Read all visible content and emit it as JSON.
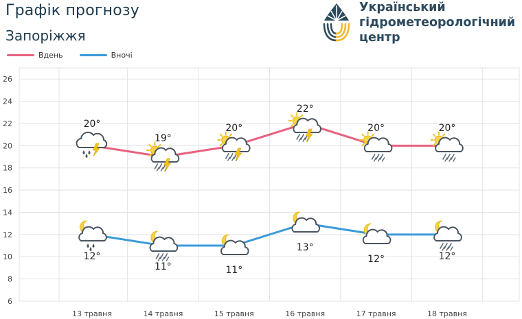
{
  "header": {
    "title": "Графік прогнозу",
    "city": "Запоріжжя",
    "org_line1": "Український",
    "org_line2": "гідрометеорологічний",
    "org_line3": "центр"
  },
  "colors": {
    "day": "#e8627f",
    "night": "#3b9ad9",
    "grid": "#e3e3e3"
  },
  "chart_data": {
    "type": "line",
    "categories": [
      "13 травня",
      "14 травня",
      "15 травня",
      "16 травня",
      "17 травня",
      "18 травня"
    ],
    "series": [
      {
        "name": "Вдень",
        "values": [
          20,
          19,
          20,
          22,
          20,
          20
        ],
        "labels": [
          "20°",
          "19°",
          "20°",
          "22°",
          "20°",
          "20°"
        ],
        "icons": [
          "rain-thunder-cloud-icon",
          "sun-thunder-cloud-icon",
          "sun-thunder-cloud-icon",
          "sun-thunder-cloud-icon",
          "sun-drizzle-cloud-icon",
          "sun-drizzle-cloud-icon"
        ]
      },
      {
        "name": "Вночі",
        "values": [
          12,
          11,
          11,
          13,
          12,
          12
        ],
        "labels": [
          "12°",
          "11°",
          "11°",
          "13°",
          "12°",
          "12°"
        ],
        "icons": [
          "moon-rain-cloud-icon",
          "moon-drizzle-cloud-icon",
          "moon-cloud-icon",
          "moon-cloud-icon",
          "moon-cloud-icon",
          "moon-drizzle-cloud-icon"
        ]
      }
    ],
    "yticks": [
      "6",
      "8",
      "10",
      "12",
      "14",
      "16",
      "18",
      "20",
      "22",
      "24",
      "26"
    ],
    "ylim": [
      6,
      27
    ],
    "grid": true,
    "legend": "top-left"
  }
}
